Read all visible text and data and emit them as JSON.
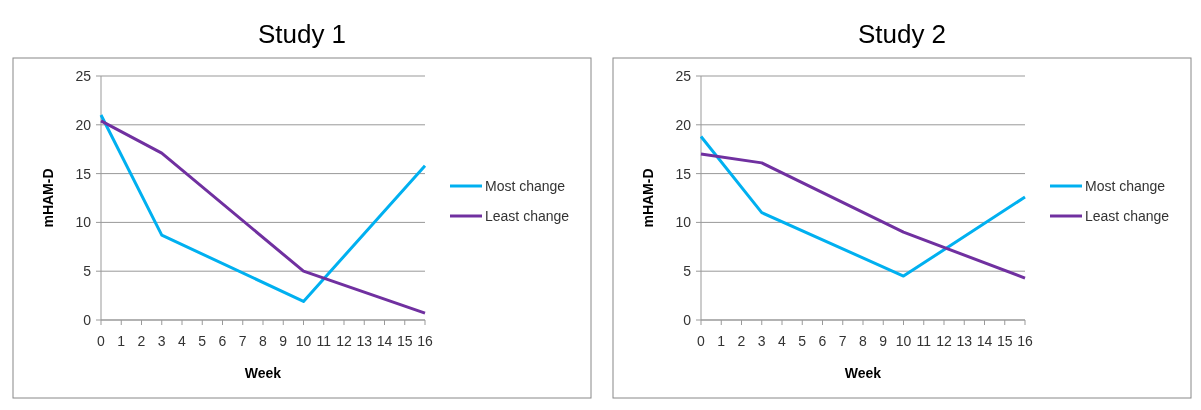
{
  "chart_data": [
    {
      "type": "line",
      "title": "Study 1",
      "xlabel": "Week",
      "ylabel": "mHAM-D",
      "x": [
        0,
        3,
        10,
        16
      ],
      "xlim": [
        0,
        16
      ],
      "xticks": [
        0,
        1,
        2,
        3,
        4,
        5,
        6,
        7,
        8,
        9,
        10,
        11,
        12,
        13,
        14,
        15,
        16
      ],
      "ylim": [
        0,
        25
      ],
      "yticks": [
        0,
        5,
        10,
        15,
        20,
        25
      ],
      "grid": "y",
      "legend": "right",
      "marker": "none",
      "series": [
        {
          "name": "Most change",
          "color": "#00b0f0",
          "values": [
            21,
            8.7,
            1.9,
            15.8
          ]
        },
        {
          "name": "Least change",
          "color": "#7030a0",
          "values": [
            20.4,
            17.1,
            5,
            0.7
          ]
        }
      ]
    },
    {
      "type": "line",
      "title": "Study 2",
      "xlabel": "Week",
      "ylabel": "mHAM-D",
      "x": [
        0,
        3,
        10,
        16
      ],
      "xlim": [
        0,
        16
      ],
      "xticks": [
        0,
        1,
        2,
        3,
        4,
        5,
        6,
        7,
        8,
        9,
        10,
        11,
        12,
        13,
        14,
        15,
        16
      ],
      "ylim": [
        0,
        25
      ],
      "yticks": [
        0,
        5,
        10,
        15,
        20,
        25
      ],
      "grid": "y",
      "legend": "right",
      "marker": "none",
      "series": [
        {
          "name": "Most change",
          "color": "#00b0f0",
          "values": [
            18.8,
            11,
            4.5,
            12.6
          ]
        },
        {
          "name": "Least change",
          "color": "#7030a0",
          "values": [
            17,
            16.1,
            9,
            4.3
          ]
        }
      ]
    }
  ]
}
